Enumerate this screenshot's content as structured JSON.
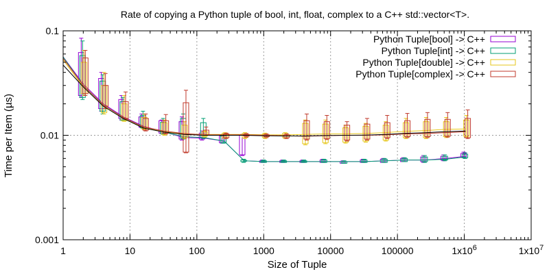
{
  "chart_data": {
    "type": "line",
    "title": "Rate of copying a Python tuple of bool, int, float, complex to a C++ std::vector<T>.",
    "xlabel": "Size of Tuple",
    "ylabel": "Time per Item (µs)",
    "x_scale": "log",
    "y_scale": "log",
    "xlim": [
      1,
      10000000
    ],
    "ylim": [
      0.001,
      0.1
    ],
    "x_ticks": [
      {
        "value": 1,
        "label": "1"
      },
      {
        "value": 10,
        "label": "10"
      },
      {
        "value": 100,
        "label": "100"
      },
      {
        "value": 1000,
        "label": "1000"
      },
      {
        "value": 10000,
        "label": "10000"
      },
      {
        "value": 100000,
        "label": "100000"
      },
      {
        "value": 1000000,
        "label": "1x10",
        "sup": "6"
      },
      {
        "value": 10000000,
        "label": "1x10",
        "sup": "7"
      }
    ],
    "y_ticks": [
      {
        "value": 0.001,
        "label": "0.001"
      },
      {
        "value": 0.01,
        "label": "0.01"
      },
      {
        "value": 0.1,
        "label": "0.1"
      }
    ],
    "grid": true,
    "legend_position": "top-right",
    "x": [
      2,
      4,
      8,
      16,
      32,
      64,
      128,
      256,
      512,
      1024,
      2048,
      4096,
      8192,
      16384,
      32768,
      65536,
      131072,
      262144,
      524288,
      1048576
    ],
    "series": [
      {
        "name": "Python Tuple[bool] -> C++",
        "color": "#9400d3",
        "mean": [
          0.031,
          0.02,
          0.015,
          0.0122,
          0.0108,
          0.0095,
          0.0094,
          0.0088,
          0.0057,
          0.0056,
          0.0056,
          0.0056,
          0.0056,
          0.0056,
          0.0056,
          0.0057,
          0.0058,
          0.0058,
          0.006,
          0.0063
        ],
        "box": [
          [
            0.024,
            0.062
          ],
          [
            0.018,
            0.035
          ],
          [
            0.0145,
            0.022
          ],
          [
            0.012,
            0.015
          ],
          [
            0.0105,
            0.0138
          ],
          [
            0.0092,
            0.0135
          ],
          [
            0.0092,
            0.0105
          ],
          [
            0.0085,
            0.0098
          ],
          [
            0.0065,
            0.01
          ],
          [
            0.0055,
            0.0057
          ],
          [
            0.0055,
            0.0057
          ],
          [
            0.0055,
            0.0057
          ],
          [
            0.0055,
            0.0058
          ],
          [
            0.0054,
            0.0056
          ],
          [
            0.0055,
            0.0058
          ],
          [
            0.0055,
            0.0059
          ],
          [
            0.0056,
            0.006
          ],
          [
            0.0056,
            0.0062
          ],
          [
            0.0058,
            0.0063
          ],
          [
            0.0062,
            0.0067
          ]
        ],
        "whisker": [
          [
            0.023,
            0.085
          ],
          [
            0.017,
            0.04
          ],
          [
            0.014,
            0.024
          ],
          [
            0.0118,
            0.016
          ],
          [
            0.0104,
            0.014
          ],
          [
            0.009,
            0.015
          ],
          [
            0.009,
            0.011
          ],
          [
            0.0084,
            0.01
          ],
          [
            0.0064,
            0.0102
          ],
          [
            0.0055,
            0.0058
          ],
          [
            0.0055,
            0.0058
          ],
          [
            0.0055,
            0.0058
          ],
          [
            0.0055,
            0.0059
          ],
          [
            0.0054,
            0.0057
          ],
          [
            0.0055,
            0.0059
          ],
          [
            0.0055,
            0.006
          ],
          [
            0.0056,
            0.0061
          ],
          [
            0.0055,
            0.0064
          ],
          [
            0.0057,
            0.0065
          ],
          [
            0.0061,
            0.0069
          ]
        ]
      },
      {
        "name": "Python Tuple[int] -> C++",
        "color": "#009e73",
        "mean": [
          0.03,
          0.0195,
          0.0148,
          0.012,
          0.0107,
          0.0097,
          0.0095,
          0.0088,
          0.0057,
          0.0056,
          0.0056,
          0.0056,
          0.0056,
          0.0056,
          0.0056,
          0.0057,
          0.0058,
          0.0058,
          0.0059,
          0.0062
        ],
        "box": [
          [
            0.023,
            0.058
          ],
          [
            0.017,
            0.033
          ],
          [
            0.014,
            0.021
          ],
          [
            0.0118,
            0.0155
          ],
          [
            0.0104,
            0.0133
          ],
          [
            0.0094,
            0.0145
          ],
          [
            0.0095,
            0.0132
          ],
          [
            0.0085,
            0.0099
          ],
          [
            0.0056,
            0.0058
          ],
          [
            0.0055,
            0.0057
          ],
          [
            0.0055,
            0.0057
          ],
          [
            0.0055,
            0.0057
          ],
          [
            0.0055,
            0.0058
          ],
          [
            0.0054,
            0.0056
          ],
          [
            0.0055,
            0.0058
          ],
          [
            0.0055,
            0.0059
          ],
          [
            0.0056,
            0.006
          ],
          [
            0.0056,
            0.0062
          ],
          [
            0.0058,
            0.0063
          ],
          [
            0.0061,
            0.0066
          ]
        ],
        "whisker": [
          [
            0.022,
            0.08
          ],
          [
            0.016,
            0.038
          ],
          [
            0.0138,
            0.023
          ],
          [
            0.0116,
            0.017
          ],
          [
            0.0102,
            0.0145
          ],
          [
            0.0092,
            0.016
          ],
          [
            0.0093,
            0.0145
          ],
          [
            0.0084,
            0.0102
          ],
          [
            0.0055,
            0.0059
          ],
          [
            0.0055,
            0.0058
          ],
          [
            0.0055,
            0.0058
          ],
          [
            0.0055,
            0.0058
          ],
          [
            0.0055,
            0.0059
          ],
          [
            0.0054,
            0.0057
          ],
          [
            0.0055,
            0.0059
          ],
          [
            0.0055,
            0.006
          ],
          [
            0.0056,
            0.0061
          ],
          [
            0.0055,
            0.0064
          ],
          [
            0.0057,
            0.0065
          ],
          [
            0.006,
            0.0068
          ]
        ]
      },
      {
        "name": "Python Tuple[double] -> C++",
        "color": "#e6c619",
        "mean": [
          0.029,
          0.019,
          0.0145,
          0.0118,
          0.0108,
          0.0103,
          0.0102,
          0.0102,
          0.0102,
          0.0101,
          0.0101,
          0.0102,
          0.0103,
          0.0103,
          0.0104,
          0.0106,
          0.0109,
          0.0111,
          0.0114,
          0.0115
        ],
        "box": [
          [
            0.025,
            0.05
          ],
          [
            0.0165,
            0.03
          ],
          [
            0.0138,
            0.02
          ],
          [
            0.0115,
            0.0148
          ],
          [
            0.0102,
            0.0132
          ],
          [
            0.0095,
            0.0125
          ],
          [
            0.0098,
            0.0108
          ],
          [
            0.0095,
            0.0104
          ],
          [
            0.0095,
            0.0104
          ],
          [
            0.0095,
            0.0103
          ],
          [
            0.0095,
            0.0104
          ],
          [
            0.0083,
            0.013
          ],
          [
            0.0085,
            0.0128
          ],
          [
            0.0086,
            0.0118
          ],
          [
            0.0088,
            0.0122
          ],
          [
            0.009,
            0.0125
          ],
          [
            0.0095,
            0.0132
          ],
          [
            0.0095,
            0.0135
          ],
          [
            0.0097,
            0.0135
          ],
          [
            0.0098,
            0.014
          ]
        ],
        "whisker": [
          [
            0.024,
            0.065
          ],
          [
            0.016,
            0.04
          ],
          [
            0.0136,
            0.024
          ],
          [
            0.0113,
            0.016
          ],
          [
            0.01,
            0.014
          ],
          [
            0.0093,
            0.0135
          ],
          [
            0.0096,
            0.011
          ],
          [
            0.0093,
            0.0106
          ],
          [
            0.0093,
            0.0106
          ],
          [
            0.0093,
            0.0105
          ],
          [
            0.0093,
            0.0106
          ],
          [
            0.0081,
            0.014
          ],
          [
            0.0083,
            0.014
          ],
          [
            0.0084,
            0.0125
          ],
          [
            0.0086,
            0.013
          ],
          [
            0.0088,
            0.0135
          ],
          [
            0.0093,
            0.0145
          ],
          [
            0.0093,
            0.0148
          ],
          [
            0.0095,
            0.0148
          ],
          [
            0.0096,
            0.0155
          ]
        ]
      },
      {
        "name": "Python Tuple[complex] -> C++",
        "color": "#c0392b",
        "mean": [
          0.03,
          0.0195,
          0.0148,
          0.012,
          0.011,
          0.0104,
          0.0101,
          0.0101,
          0.0101,
          0.01,
          0.0099,
          0.0098,
          0.0099,
          0.01,
          0.01,
          0.0101,
          0.0103,
          0.0104,
          0.0106,
          0.0108
        ],
        "box": [
          [
            0.025,
            0.055
          ],
          [
            0.019,
            0.03
          ],
          [
            0.0145,
            0.021
          ],
          [
            0.0112,
            0.0145
          ],
          [
            0.0105,
            0.0138
          ],
          [
            0.0069,
            0.0205
          ],
          [
            0.0101,
            0.0112
          ],
          [
            0.0095,
            0.0103
          ],
          [
            0.0098,
            0.0102
          ],
          [
            0.0097,
            0.0101
          ],
          [
            0.0095,
            0.0101
          ],
          [
            0.0092,
            0.0138
          ],
          [
            0.0093,
            0.0135
          ],
          [
            0.009,
            0.0125
          ],
          [
            0.0092,
            0.0128
          ],
          [
            0.0095,
            0.0132
          ],
          [
            0.0097,
            0.0138
          ],
          [
            0.0097,
            0.0142
          ],
          [
            0.0098,
            0.0142
          ],
          [
            0.0095,
            0.0145
          ]
        ],
        "whisker": [
          [
            0.024,
            0.065
          ],
          [
            0.018,
            0.039
          ],
          [
            0.0142,
            0.026
          ],
          [
            0.011,
            0.016
          ],
          [
            0.0103,
            0.0158
          ],
          [
            0.0068,
            0.027
          ],
          [
            0.01,
            0.012
          ],
          [
            0.0093,
            0.0105
          ],
          [
            0.0096,
            0.0104
          ],
          [
            0.0095,
            0.0103
          ],
          [
            0.0093,
            0.0103
          ],
          [
            0.009,
            0.016
          ],
          [
            0.0091,
            0.0155
          ],
          [
            0.0088,
            0.0135
          ],
          [
            0.009,
            0.0145
          ],
          [
            0.0093,
            0.0155
          ],
          [
            0.0095,
            0.0162
          ],
          [
            0.0095,
            0.0165
          ],
          [
            0.0096,
            0.0165
          ],
          [
            0.0093,
            0.0175
          ]
        ]
      }
    ]
  }
}
